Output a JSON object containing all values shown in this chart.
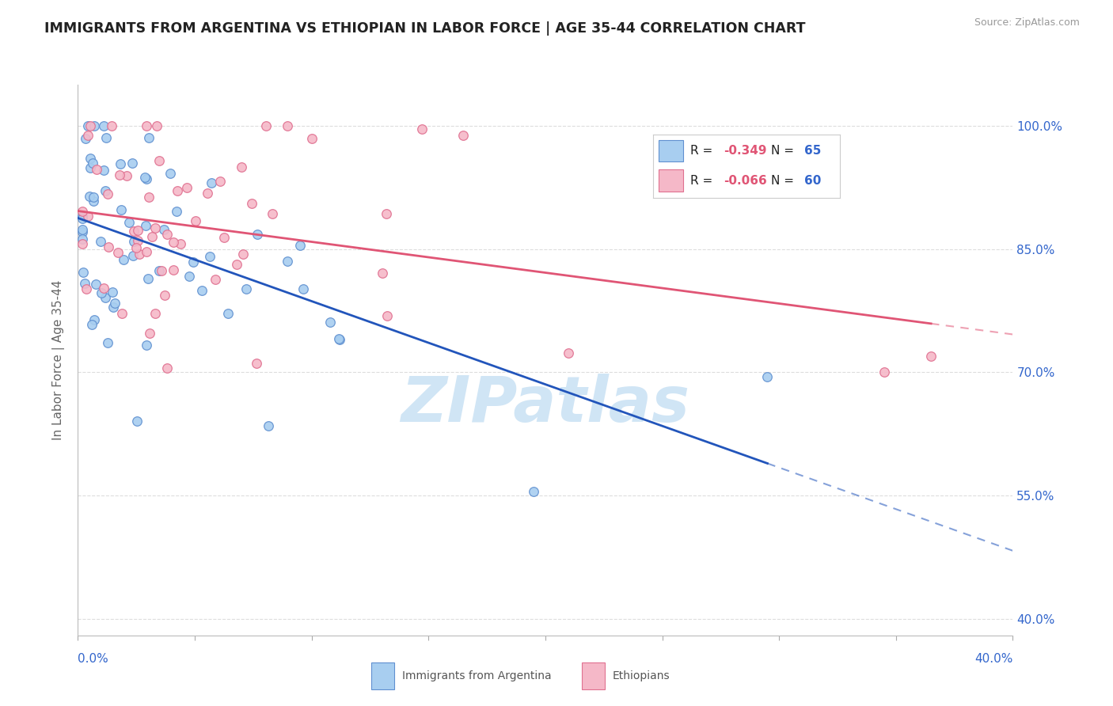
{
  "title": "IMMIGRANTS FROM ARGENTINA VS ETHIOPIAN IN LABOR FORCE | AGE 35-44 CORRELATION CHART",
  "source": "Source: ZipAtlas.com",
  "ylabel": "In Labor Force | Age 35-44",
  "right_yticks": [
    1.0,
    0.85,
    0.7,
    0.55,
    0.4
  ],
  "right_yticklabels": [
    "100.0%",
    "85.0%",
    "70.0%",
    "55.0%",
    "40.0%"
  ],
  "xmin": 0.0,
  "xmax": 0.4,
  "ymin": 0.38,
  "ymax": 1.05,
  "argentina_color": "#a8cef0",
  "ethiopia_color": "#f5b8c8",
  "argentina_edge": "#6090d0",
  "ethiopia_edge": "#e07090",
  "trend_argentina_color": "#2255bb",
  "trend_ethiopia_color": "#e05575",
  "r_color": "#e05575",
  "n_color": "#3366cc",
  "watermark_color": "#d0e5f5",
  "background_color": "#ffffff",
  "grid_color": "#dddddd",
  "title_color": "#222222",
  "axis_label_color": "#666666",
  "tick_label_color": "#3366cc",
  "argentina_scatter_seed": 42,
  "ethiopia_scatter_seed": 7,
  "argentina_n": 65,
  "ethiopia_n": 60,
  "argentina_r": -0.349,
  "ethiopia_r": -0.066,
  "legend_r1_text": "-0.349",
  "legend_n1_text": "65",
  "legend_r2_text": "-0.066",
  "legend_n2_text": "60"
}
